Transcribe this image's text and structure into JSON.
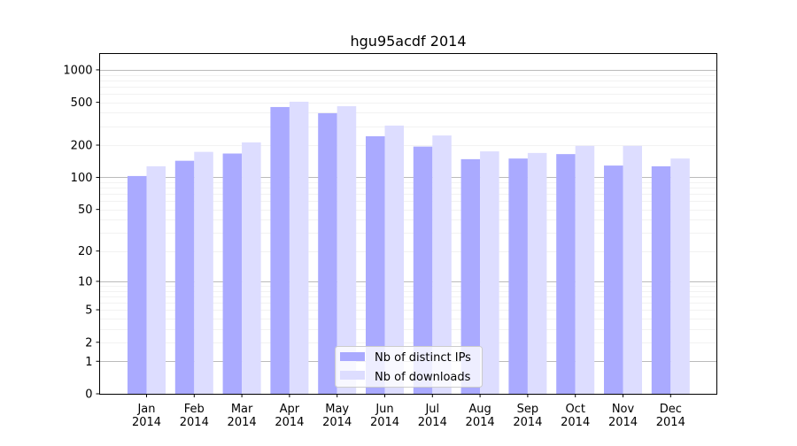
{
  "chart_data": {
    "type": "bar",
    "title": "hgu95acdf 2014",
    "xlabel": "",
    "ylabel": "",
    "yscale": "log(y+1)",
    "ylim": [
      0,
      1430
    ],
    "grid": true,
    "legend_position": "bottom-center",
    "categories": [
      "Jan\n2014",
      "Feb\n2014",
      "Mar\n2014",
      "Apr\n2014",
      "May\n2014",
      "Jun\n2014",
      "Jul\n2014",
      "Aug\n2014",
      "Sep\n2014",
      "Oct\n2014",
      "Nov\n2014",
      "Dec\n2014"
    ],
    "yticks": [
      0,
      1,
      2,
      5,
      10,
      20,
      50,
      100,
      200,
      500,
      1000
    ],
    "series": [
      {
        "name": "Nb of distinct IPs",
        "color": "#aaaaff",
        "values": [
          103,
          143,
          167,
          452,
          396,
          242,
          194,
          148,
          150,
          165,
          129,
          127
        ]
      },
      {
        "name": "Nb of downloads",
        "color": "#ddddff",
        "values": [
          127,
          173,
          212,
          506,
          460,
          304,
          246,
          175,
          169,
          197,
          197,
          150
        ]
      }
    ]
  }
}
